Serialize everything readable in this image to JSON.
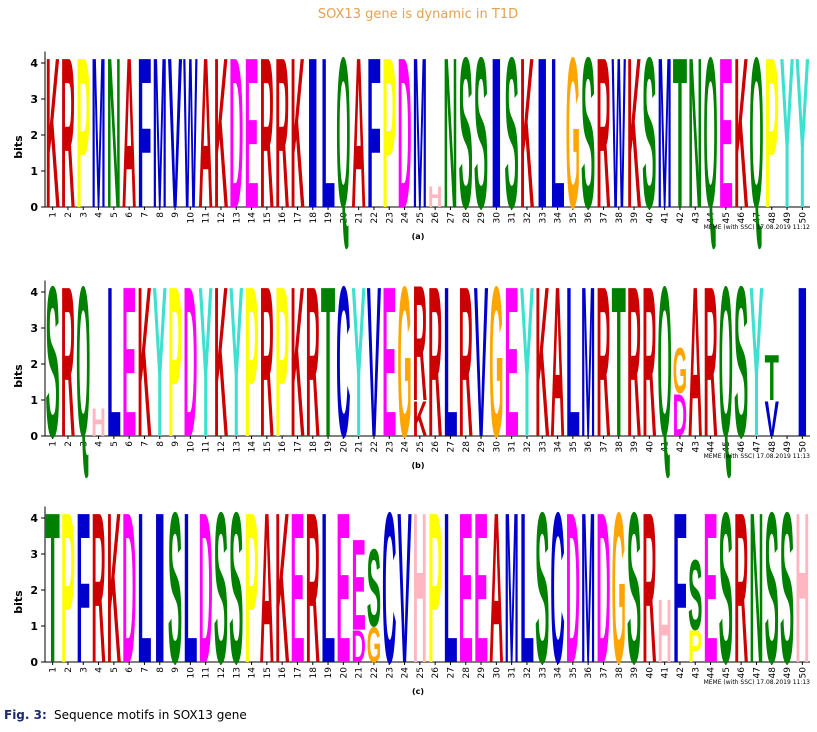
{
  "letter_colors": {
    "A": "#cc0000",
    "C": "#0000cc",
    "D": "#ff00ff",
    "E": "#ff00ff",
    "F": "#0000cc",
    "G": "#ffa500",
    "H": "#ffb6c1",
    "I": "#0000cc",
    "K": "#cc0000",
    "L": "#0000cc",
    "M": "#0000cc",
    "N": "#008000",
    "P": "#ffff00",
    "Q": "#008000",
    "R": "#cc0000",
    "S": "#008000",
    "T": "#008000",
    "V": "#0000cc",
    "W": "#0000cc",
    "Y": "#40e0d0"
  },
  "chart_data": [
    {
      "type": "logo",
      "title": "SOX13 gene is dynamic in T1D",
      "y_label": "bits",
      "panel_label": "(a)",
      "stamp": "MEME (with SSC) 17.08.2019 11:12",
      "ylim": [
        0,
        4.32
      ],
      "yticks": [
        0,
        1,
        2,
        3,
        4
      ],
      "x": [
        1,
        2,
        3,
        4,
        5,
        6,
        7,
        8,
        9,
        10,
        11,
        12,
        13,
        14,
        15,
        16,
        17,
        18,
        19,
        20,
        21,
        22,
        23,
        24,
        25,
        26,
        27,
        28,
        29,
        30,
        31,
        32,
        33,
        34,
        35,
        36,
        37,
        38,
        39,
        40,
        41,
        42,
        43,
        44,
        45,
        46,
        47,
        48,
        49,
        50
      ],
      "letters": [
        [
          "K"
        ],
        [
          "R"
        ],
        [
          "P"
        ],
        [
          "M"
        ],
        [
          "N"
        ],
        [
          "A"
        ],
        [
          "F"
        ],
        [
          "M"
        ],
        [
          "V"
        ],
        [
          "W"
        ],
        [
          "A"
        ],
        [
          "K"
        ],
        [
          "D"
        ],
        [
          "E"
        ],
        [
          "R"
        ],
        [
          "R"
        ],
        [
          "K"
        ],
        [
          "I"
        ],
        [
          "L"
        ],
        [
          "Q"
        ],
        [
          "A"
        ],
        [
          "F"
        ],
        [
          "P"
        ],
        [
          "D"
        ],
        [
          "M"
        ],
        [
          "H"
        ],
        [
          "N"
        ],
        [
          "S"
        ],
        [
          "S"
        ],
        [
          "I"
        ],
        [
          "S"
        ],
        [
          "K"
        ],
        [
          "I"
        ],
        [
          "L"
        ],
        [
          "G"
        ],
        [
          "S"
        ],
        [
          "R"
        ],
        [
          "W"
        ],
        [
          "K"
        ],
        [
          "S"
        ],
        [
          "M"
        ],
        [
          "T"
        ],
        [
          "N"
        ],
        [
          "Q"
        ],
        [
          "E"
        ],
        [
          "K"
        ],
        [
          "Q"
        ],
        [
          "P"
        ],
        [
          "Y"
        ],
        [
          "Y"
        ]
      ],
      "bits": [
        [
          4.3
        ],
        [
          4.3
        ],
        [
          4.3
        ],
        [
          4.3
        ],
        [
          4.3
        ],
        [
          4.3
        ],
        [
          4.3
        ],
        [
          4.3
        ],
        [
          4.3
        ],
        [
          4.3
        ],
        [
          4.3
        ],
        [
          4.3
        ],
        [
          4.3
        ],
        [
          4.3
        ],
        [
          4.3
        ],
        [
          4.3
        ],
        [
          4.3
        ],
        [
          4.3
        ],
        [
          4.3
        ],
        [
          4.3
        ],
        [
          4.3
        ],
        [
          4.3
        ],
        [
          4.3
        ],
        [
          4.3
        ],
        [
          4.3
        ],
        [
          0.6
        ],
        [
          4.3
        ],
        [
          4.3
        ],
        [
          4.3
        ],
        [
          4.3
        ],
        [
          4.3
        ],
        [
          4.3
        ],
        [
          4.3
        ],
        [
          4.3
        ],
        [
          4.3
        ],
        [
          4.3
        ],
        [
          4.3
        ],
        [
          4.3
        ],
        [
          4.3
        ],
        [
          4.3
        ],
        [
          4.3
        ],
        [
          4.3
        ],
        [
          4.3
        ],
        [
          4.3
        ],
        [
          4.3
        ],
        [
          4.3
        ],
        [
          4.3
        ],
        [
          4.3
        ],
        [
          4.3
        ],
        [
          4.3
        ]
      ]
    },
    {
      "type": "logo",
      "y_label": "bits",
      "panel_label": "(b)",
      "stamp": "MEME (with SSC) 17.08.2019 11:13",
      "ylim": [
        0,
        4.32
      ],
      "yticks": [
        0,
        1,
        2,
        3,
        4
      ],
      "x": [
        1,
        2,
        3,
        4,
        5,
        6,
        7,
        8,
        9,
        10,
        11,
        12,
        13,
        14,
        15,
        16,
        17,
        18,
        19,
        20,
        21,
        22,
        23,
        24,
        25,
        26,
        27,
        28,
        29,
        30,
        31,
        32,
        33,
        34,
        35,
        36,
        37,
        38,
        39,
        40,
        41,
        42,
        43,
        44,
        45,
        46,
        47,
        48,
        49,
        50
      ],
      "letters": [
        [
          "S"
        ],
        [
          "R"
        ],
        [
          "Q"
        ],
        [
          "H"
        ],
        [
          "L"
        ],
        [
          "E"
        ],
        [
          "K"
        ],
        [
          "Y"
        ],
        [
          "P"
        ],
        [
          "D"
        ],
        [
          "Y"
        ],
        [
          "K"
        ],
        [
          "Y"
        ],
        [
          "P"
        ],
        [
          "R"
        ],
        [
          "P"
        ],
        [
          "K"
        ],
        [
          "R"
        ],
        [
          "T"
        ],
        [
          "C"
        ],
        [
          "Y"
        ],
        [
          "V"
        ],
        [
          "E"
        ],
        [
          "G"
        ],
        [
          "K",
          "R"
        ],
        [
          "R"
        ],
        [
          "L"
        ],
        [
          "R"
        ],
        [
          "V"
        ],
        [
          "G"
        ],
        [
          "E"
        ],
        [
          "Y"
        ],
        [
          "K"
        ],
        [
          "A"
        ],
        [
          "L"
        ],
        [
          "M"
        ],
        [
          "R"
        ],
        [
          "T"
        ],
        [
          "R"
        ],
        [
          "R"
        ],
        [
          "Q"
        ],
        [
          "D",
          "G"
        ],
        [
          "A"
        ],
        [
          "R"
        ],
        [
          "Q"
        ],
        [
          "S"
        ],
        [
          "Y"
        ],
        [
          "V",
          "T"
        ],
        [],
        [
          "I"
        ]
      ],
      "bits": [
        [
          4.3
        ],
        [
          4.3
        ],
        [
          4.3
        ],
        [
          0.8
        ],
        [
          4.3
        ],
        [
          4.3
        ],
        [
          4.3
        ],
        [
          4.3
        ],
        [
          4.3
        ],
        [
          4.3
        ],
        [
          4.3
        ],
        [
          4.3
        ],
        [
          4.3
        ],
        [
          4.3
        ],
        [
          4.3
        ],
        [
          4.3
        ],
        [
          4.3
        ],
        [
          4.3
        ],
        [
          4.3
        ],
        [
          4.3
        ],
        [
          4.3
        ],
        [
          4.3
        ],
        [
          4.3
        ],
        [
          4.3
        ],
        [
          1.0,
          3.3
        ],
        [
          4.3
        ],
        [
          4.3
        ],
        [
          4.3
        ],
        [
          4.3
        ],
        [
          4.3
        ],
        [
          4.3
        ],
        [
          4.3
        ],
        [
          4.3
        ],
        [
          4.3
        ],
        [
          4.3
        ],
        [
          4.3
        ],
        [
          4.3
        ],
        [
          4.3
        ],
        [
          4.3
        ],
        [
          4.3
        ],
        [
          4.3
        ],
        [
          1.2,
          1.3
        ],
        [
          4.3
        ],
        [
          4.3
        ],
        [
          4.3
        ],
        [
          4.3
        ],
        [
          4.3
        ],
        [
          1.0,
          1.3
        ],
        [],
        [
          4.3
        ]
      ]
    },
    {
      "type": "logo",
      "y_label": "bits",
      "panel_label": "(c)",
      "stamp": "MEME (with SSC) 17.08.2019 11:13",
      "ylim": [
        0,
        4.32
      ],
      "yticks": [
        0,
        1,
        2,
        3,
        4
      ],
      "x": [
        1,
        2,
        3,
        4,
        5,
        6,
        7,
        8,
        9,
        10,
        11,
        12,
        13,
        14,
        15,
        16,
        17,
        18,
        19,
        20,
        21,
        22,
        23,
        24,
        25,
        26,
        27,
        28,
        29,
        30,
        31,
        32,
        33,
        34,
        35,
        36,
        37,
        38,
        39,
        40,
        41,
        42,
        43,
        44,
        45,
        46,
        47,
        48,
        49,
        50
      ],
      "letters": [
        [
          "T"
        ],
        [
          "P"
        ],
        [
          "F"
        ],
        [
          "R"
        ],
        [
          "K"
        ],
        [
          "D"
        ],
        [
          "L"
        ],
        [
          "I"
        ],
        [
          "S"
        ],
        [
          "L"
        ],
        [
          "D"
        ],
        [
          "S"
        ],
        [
          "S"
        ],
        [
          "P"
        ],
        [
          "A"
        ],
        [
          "K"
        ],
        [
          "E"
        ],
        [
          "R"
        ],
        [
          "L"
        ],
        [
          "E"
        ],
        [
          "D",
          "E"
        ],
        [
          "G",
          "S"
        ],
        [
          "C"
        ],
        [
          "V"
        ],
        [
          "H"
        ],
        [
          "P"
        ],
        [
          "L"
        ],
        [
          "E"
        ],
        [
          "E"
        ],
        [
          "A"
        ],
        [
          "M"
        ],
        [
          "L"
        ],
        [
          "S"
        ],
        [
          "C"
        ],
        [
          "D"
        ],
        [
          "M"
        ],
        [
          "D"
        ],
        [
          "G"
        ],
        [
          "S"
        ],
        [
          "R"
        ],
        [
          "H"
        ],
        [
          "F"
        ],
        [
          "P",
          "S"
        ],
        [
          "E"
        ],
        [
          "S"
        ],
        [
          "R"
        ],
        [
          "N"
        ],
        [
          "S"
        ],
        [
          "S"
        ],
        [
          "H"
        ]
      ],
      "bits": [
        [
          4.3
        ],
        [
          4.3
        ],
        [
          4.3
        ],
        [
          4.3
        ],
        [
          4.3
        ],
        [
          4.3
        ],
        [
          4.3
        ],
        [
          4.3
        ],
        [
          4.3
        ],
        [
          4.3
        ],
        [
          4.3
        ],
        [
          4.3
        ],
        [
          4.3
        ],
        [
          4.3
        ],
        [
          4.3
        ],
        [
          4.3
        ],
        [
          4.3
        ],
        [
          4.3
        ],
        [
          4.3
        ],
        [
          4.3
        ],
        [
          0.9,
          2.6
        ],
        [
          1.0,
          2.2
        ],
        [
          4.3
        ],
        [
          4.3
        ],
        [
          4.3
        ],
        [
          4.3
        ],
        [
          4.3
        ],
        [
          4.3
        ],
        [
          4.3
        ],
        [
          4.3
        ],
        [
          4.3
        ],
        [
          4.3
        ],
        [
          4.3
        ],
        [
          4.3
        ],
        [
          4.3
        ],
        [
          4.3
        ],
        [
          4.3
        ],
        [
          4.3
        ],
        [
          4.3
        ],
        [
          4.3
        ],
        [
          1.8
        ],
        [
          4.3
        ],
        [
          0.9,
          2.0
        ],
        [
          4.3
        ],
        [
          4.3
        ],
        [
          4.3
        ],
        [
          4.3
        ],
        [
          4.3
        ],
        [
          4.3
        ],
        [
          4.3
        ]
      ]
    }
  ],
  "caption": {
    "label": "Fig. 3:",
    "text": "Sequence motifs in SOX13 gene"
  }
}
